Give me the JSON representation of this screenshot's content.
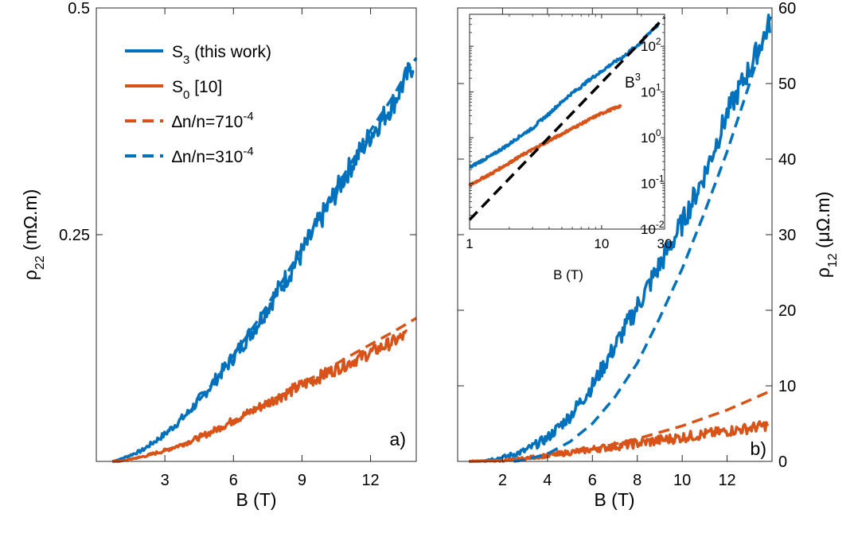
{
  "colors": {
    "blue": "#0072BD",
    "orange": "#D95319",
    "black": "#000000"
  },
  "chart_data": [
    {
      "type": "line",
      "panel_label": "a)",
      "xlabel": "B (T)",
      "ylabel": {
        "sym": "ρ",
        "sub": "22",
        "unit": " (mΩ.m)"
      },
      "xlim": [
        0,
        14
      ],
      "ylim": [
        0,
        0.5
      ],
      "xticks": [
        {
          "v": 3,
          "label": "3"
        },
        {
          "v": 6,
          "label": "6"
        },
        {
          "v": 9,
          "label": "9"
        },
        {
          "v": 12,
          "label": "12"
        }
      ],
      "yticks": [
        {
          "v": 0.25,
          "label": "0.25"
        },
        {
          "v": 0.5,
          "label": "0.5"
        }
      ],
      "legend": [
        {
          "base": "S",
          "sub": "3",
          "rest": " (this work)",
          "color": "#0072BD",
          "dash": false
        },
        {
          "base": "S",
          "sub": "0",
          "rest": " [10]",
          "color": "#D95319",
          "dash": false
        },
        {
          "base": "∆n/n=710",
          "sup": "-4",
          "color": "#D95319",
          "dash": true
        },
        {
          "base": "∆n/n=310",
          "sup": "-4",
          "color": "#0072BD",
          "dash": true
        }
      ],
      "series": [
        {
          "key": "S3",
          "color": "#0072BD",
          "dash": false,
          "noise": 0.013,
          "x": [
            0.7,
            1,
            2,
            3,
            4,
            5,
            6,
            7,
            8,
            9,
            10,
            11,
            12,
            13,
            13.5,
            13.9
          ],
          "y": [
            0.0,
            0.002,
            0.012,
            0.03,
            0.053,
            0.083,
            0.115,
            0.15,
            0.19,
            0.23,
            0.275,
            0.32,
            0.36,
            0.395,
            0.42,
            0.44
          ]
        },
        {
          "key": "S0",
          "color": "#D95319",
          "dash": false,
          "noise": 0.007,
          "x": [
            0.7,
            1,
            2,
            3,
            4,
            5,
            6,
            7,
            8,
            9,
            10,
            11,
            12,
            13,
            13.6
          ],
          "y": [
            0.0,
            0.0,
            0.005,
            0.012,
            0.021,
            0.032,
            0.045,
            0.058,
            0.071,
            0.084,
            0.096,
            0.108,
            0.12,
            0.132,
            0.14
          ]
        },
        {
          "key": "fit-orange",
          "color": "#D95319",
          "dash": true,
          "noise": 0,
          "x": [
            0.7,
            1,
            2,
            3,
            4,
            5,
            6,
            7,
            8,
            9,
            10,
            11,
            12,
            13,
            14
          ],
          "y": [
            0.0,
            0.0,
            0.005,
            0.012,
            0.021,
            0.032,
            0.045,
            0.058,
            0.072,
            0.086,
            0.1,
            0.115,
            0.129,
            0.143,
            0.158
          ]
        },
        {
          "key": "fit-blue",
          "color": "#0072BD",
          "dash": true,
          "noise": 0,
          "x": [
            4,
            5,
            6,
            7,
            8,
            9,
            10,
            11,
            12,
            13,
            13.5,
            14
          ],
          "y": [
            0.052,
            0.083,
            0.117,
            0.153,
            0.193,
            0.235,
            0.28,
            0.323,
            0.365,
            0.403,
            0.425,
            0.445
          ]
        }
      ]
    },
    {
      "type": "line",
      "panel_label": "b)",
      "xlabel": "B (T)",
      "ylabel": {
        "sym": "ρ",
        "sub": "12",
        "unit": " (μΩ.m)"
      },
      "xlim": [
        0,
        14
      ],
      "ylim": [
        0,
        60
      ],
      "xticks": [
        {
          "v": 2,
          "label": "2"
        },
        {
          "v": 4,
          "label": "4"
        },
        {
          "v": 6,
          "label": "6"
        },
        {
          "v": 8,
          "label": "8"
        },
        {
          "v": 10,
          "label": "10"
        },
        {
          "v": 12,
          "label": "12"
        }
      ],
      "yticks": [
        {
          "v": 0,
          "label": "0"
        },
        {
          "v": 10,
          "label": "10"
        },
        {
          "v": 20,
          "label": "20"
        },
        {
          "v": 30,
          "label": "30"
        },
        {
          "v": 40,
          "label": "40"
        },
        {
          "v": 50,
          "label": "50"
        },
        {
          "v": 60,
          "label": "60"
        }
      ],
      "series": [
        {
          "key": "S3",
          "color": "#0072BD",
          "dash": false,
          "noise": 1.6,
          "x": [
            0.5,
            1,
            2,
            3,
            4,
            5,
            6,
            7,
            8,
            9,
            10,
            11,
            12,
            13,
            13.9
          ],
          "y": [
            0.0,
            0.1,
            0.5,
            1.4,
            3.1,
            6.0,
            10.0,
            15.2,
            20.5,
            26.0,
            31.5,
            38.0,
            46.0,
            52.0,
            58.0
          ]
        },
        {
          "key": "S0",
          "color": "#D95319",
          "dash": false,
          "noise": 0.7,
          "x": [
            0.5,
            1,
            2,
            3,
            4,
            5,
            6,
            7,
            8,
            9,
            10,
            11,
            12,
            13,
            13.8
          ],
          "y": [
            0.0,
            0.0,
            0.1,
            0.4,
            0.8,
            1.2,
            1.6,
            2.0,
            2.4,
            2.8,
            3.2,
            3.6,
            4.0,
            4.4,
            4.8
          ]
        },
        {
          "key": "fit-orange",
          "color": "#D95319",
          "dash": true,
          "noise": 0,
          "x": [
            0.5,
            2,
            4,
            6,
            8,
            10,
            12,
            14
          ],
          "y": [
            0.0,
            0.1,
            0.6,
            1.6,
            3.0,
            4.7,
            6.8,
            9.4
          ]
        },
        {
          "key": "fit-blue",
          "color": "#0072BD",
          "dash": true,
          "noise": 0,
          "x": [
            2.5,
            3,
            4,
            5,
            6,
            7,
            8,
            9,
            10,
            11,
            12,
            13,
            14
          ],
          "y": [
            0.0,
            0.2,
            1.0,
            2.6,
            5.0,
            8.5,
            13.0,
            19.0,
            25.5,
            33.0,
            41.0,
            50.0,
            59.5
          ]
        }
      ]
    },
    {
      "type": "line",
      "panel_label": "inset",
      "xscale": "log",
      "yscale": "log",
      "xlabel": "B (T)",
      "xlim": [
        1,
        30
      ],
      "ylim": [
        0.01,
        500
      ],
      "xticks": [
        {
          "v": 1,
          "label": "1"
        },
        {
          "v": 10,
          "label": "10"
        },
        {
          "v": 30,
          "label": "30"
        }
      ],
      "yticks": [
        {
          "v": 0.01,
          "base": "10",
          "exp": "-2"
        },
        {
          "v": 0.1,
          "base": "10",
          "exp": "-1"
        },
        {
          "v": 1,
          "base": "10",
          "exp": "0"
        },
        {
          "v": 10,
          "base": "10",
          "exp": "1"
        },
        {
          "v": 100,
          "base": "10",
          "exp": "2"
        }
      ],
      "annotation": {
        "base": "B",
        "sup": "3"
      },
      "series": [
        {
          "key": "S3",
          "color": "#0072BD",
          "dash": false,
          "noise": 0.06,
          "x": [
            1,
            1.5,
            2,
            3,
            4,
            5,
            7,
            10,
            15,
            20,
            27
          ],
          "y": [
            0.22,
            0.42,
            0.72,
            1.6,
            3.3,
            6.0,
            13,
            28,
            62,
            120,
            300
          ]
        },
        {
          "key": "S0",
          "color": "#D95319",
          "dash": false,
          "noise": 0.05,
          "x": [
            1,
            1.5,
            2,
            3,
            4,
            5,
            7,
            10,
            14
          ],
          "y": [
            0.09,
            0.17,
            0.28,
            0.55,
            0.85,
            1.2,
            2.0,
            3.4,
            5.0
          ]
        },
        {
          "key": "cube",
          "color": "#000000",
          "dash": true,
          "noise": 0,
          "x": [
            1,
            30
          ],
          "y": [
            0.016,
            432
          ]
        }
      ]
    }
  ]
}
